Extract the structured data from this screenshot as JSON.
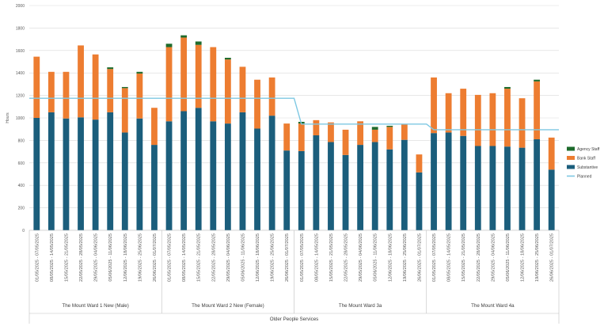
{
  "chart_data": {
    "type": "bar",
    "stacked": true,
    "title": "",
    "ylabel": "Hours",
    "xlabel": "",
    "ylim": [
      0,
      2000
    ],
    "yticks": [
      0,
      200,
      400,
      600,
      800,
      1000,
      1200,
      1400,
      1600,
      1800,
      2000
    ],
    "grid": true,
    "legend_position": "right",
    "categories": [
      "01/05/2025 - 07/05/2025",
      "08/05/2025 - 14/05/2025",
      "15/05/2025 - 21/05/2025",
      "22/05/2025 - 28/05/2025",
      "29/05/2025 - 04/06/2025",
      "05/06/2025 - 11/06/2025",
      "12/06/2025 - 18/06/2025",
      "19/06/2025 - 25/06/2025",
      "26/06/2025 - 01/07/2025",
      "01/05/2025 - 07/05/2025",
      "08/05/2025 - 14/05/2025",
      "15/05/2025 - 21/05/2025",
      "22/05/2025 - 28/05/2025",
      "29/05/2025 - 04/06/2025",
      "05/06/2025 - 11/06/2025",
      "12/06/2025 - 18/06/2025",
      "19/06/2025 - 25/06/2025",
      "26/06/2025 - 01/07/2025",
      "01/05/2025 - 07/05/2025",
      "08/05/2025 - 14/05/2025",
      "15/05/2025 - 21/05/2025",
      "22/05/2025 - 28/05/2025",
      "29/05/2025 - 04/06/2025",
      "05/06/2025 - 11/06/2025",
      "12/06/2025 - 18/06/2025",
      "19/06/2025 - 25/06/2025",
      "26/06/2025 - 01/07/2025",
      "01/05/2025 - 07/05/2025",
      "08/05/2025 - 14/05/2025",
      "15/05/2025 - 21/05/2025",
      "22/05/2025 - 28/05/2025",
      "29/05/2025 - 04/06/2025",
      "05/06/2025 - 11/06/2025",
      "12/06/2025 - 18/06/2025",
      "19/06/2025 - 25/06/2025",
      "26/06/2025 - 01/07/2025"
    ],
    "groups": [
      {
        "label": "The Mount Ward 1 New (Male)",
        "count": 9
      },
      {
        "label": "The Mount Ward 2 New (Female)",
        "count": 9
      },
      {
        "label": "The Mount Ward 3a",
        "count": 9
      },
      {
        "label": "The Mount Ward 4a",
        "count": 9
      }
    ],
    "outer_group_label": "Older People Services",
    "series": [
      {
        "name": "Substantive",
        "kind": "bar",
        "color": "#1b5e7c",
        "values": [
          1000,
          1050,
          995,
          1005,
          985,
          1050,
          870,
          995,
          760,
          970,
          1060,
          1090,
          970,
          950,
          1050,
          905,
          1020,
          710,
          705,
          845,
          785,
          670,
          760,
          785,
          720,
          805,
          515,
          865,
          870,
          840,
          750,
          750,
          745,
          735,
          810,
          540
        ]
      },
      {
        "name": "Bank Staff",
        "kind": "bar",
        "color": "#ed7d31",
        "values": [
          545,
          360,
          415,
          640,
          580,
          385,
          395,
          400,
          330,
          660,
          655,
          560,
          660,
          570,
          405,
          435,
          340,
          240,
          245,
          135,
          175,
          225,
          210,
          110,
          200,
          140,
          160,
          495,
          350,
          420,
          455,
          470,
          515,
          440,
          515,
          285
        ]
      },
      {
        "name": "Agency Staff",
        "kind": "bar",
        "color": "#1e6b2c",
        "values": [
          0,
          0,
          0,
          0,
          0,
          15,
          10,
          15,
          0,
          30,
          20,
          30,
          0,
          15,
          0,
          0,
          0,
          0,
          15,
          0,
          0,
          0,
          0,
          25,
          10,
          0,
          0,
          0,
          0,
          0,
          0,
          0,
          15,
          0,
          15,
          0
        ]
      },
      {
        "name": "Planned",
        "kind": "line",
        "color": "#7ec8e3",
        "values": [
          1175,
          1175,
          1175,
          1175,
          1175,
          1175,
          1175,
          1175,
          1175,
          1175,
          1175,
          1175,
          1175,
          1175,
          1175,
          1175,
          1175,
          1175,
          945,
          945,
          945,
          945,
          945,
          945,
          945,
          945,
          945,
          895,
          895,
          895,
          895,
          895,
          895,
          895,
          895,
          895
        ]
      }
    ],
    "legend": [
      {
        "label": "Agency Staff",
        "color": "#1e6b2c",
        "kind": "bar"
      },
      {
        "label": "Bank Staff",
        "color": "#ed7d31",
        "kind": "bar"
      },
      {
        "label": "Substantive",
        "color": "#1b5e7c",
        "kind": "bar"
      },
      {
        "label": "Planned",
        "color": "#7ec8e3",
        "kind": "line"
      }
    ]
  }
}
